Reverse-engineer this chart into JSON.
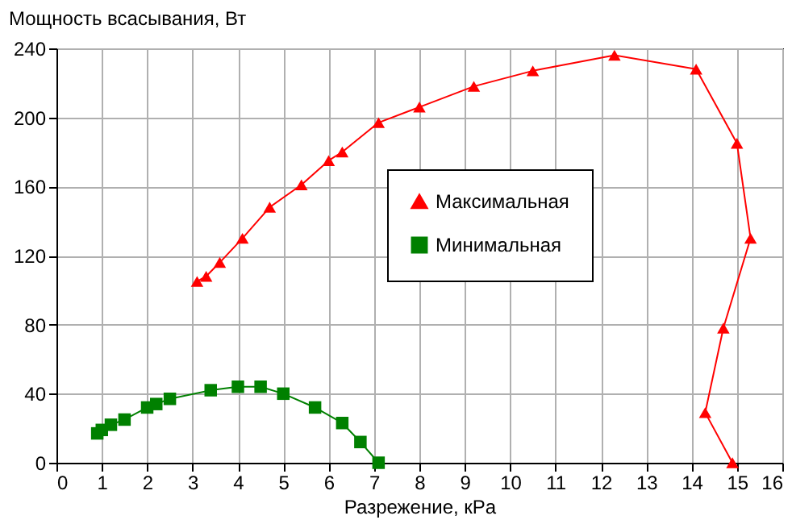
{
  "chart_data": {
    "type": "line",
    "ylabel": "Мощность всасывания, Вт",
    "xlabel": "Разрежение, кPa",
    "xlim": [
      0,
      16
    ],
    "xticks": [
      0,
      1,
      2,
      3,
      4,
      5,
      6,
      7,
      8,
      9,
      10,
      11,
      12,
      13,
      14,
      15,
      16
    ],
    "ylim": [
      0,
      240
    ],
    "yticks": [
      0,
      40,
      80,
      120,
      160,
      200,
      240
    ],
    "grid": true,
    "legend": "right",
    "series": [
      {
        "name": "Максимальная",
        "color": "#ff0000",
        "marker": "triangle",
        "x": [
          3.1,
          3.3,
          3.6,
          4.1,
          4.7,
          5.4,
          6.0,
          6.3,
          7.1,
          8.0,
          9.2,
          10.5,
          12.3,
          14.1,
          15.0,
          15.3,
          14.7,
          14.3,
          14.9
        ],
        "values": [
          105,
          108,
          116,
          130,
          148,
          161,
          175,
          180,
          197,
          206,
          218,
          227,
          236,
          228,
          185,
          130,
          78,
          29,
          0
        ]
      },
      {
        "name": "Минимальная",
        "color": "#008000",
        "marker": "square",
        "x": [
          0.9,
          1.0,
          1.2,
          1.5,
          2.0,
          2.2,
          2.5,
          3.4,
          4.0,
          4.5,
          5.0,
          5.7,
          6.3,
          6.7,
          7.1
        ],
        "values": [
          17,
          19,
          22,
          25,
          32,
          34,
          37,
          42,
          44,
          44,
          40,
          32,
          23,
          12,
          0
        ]
      }
    ]
  }
}
